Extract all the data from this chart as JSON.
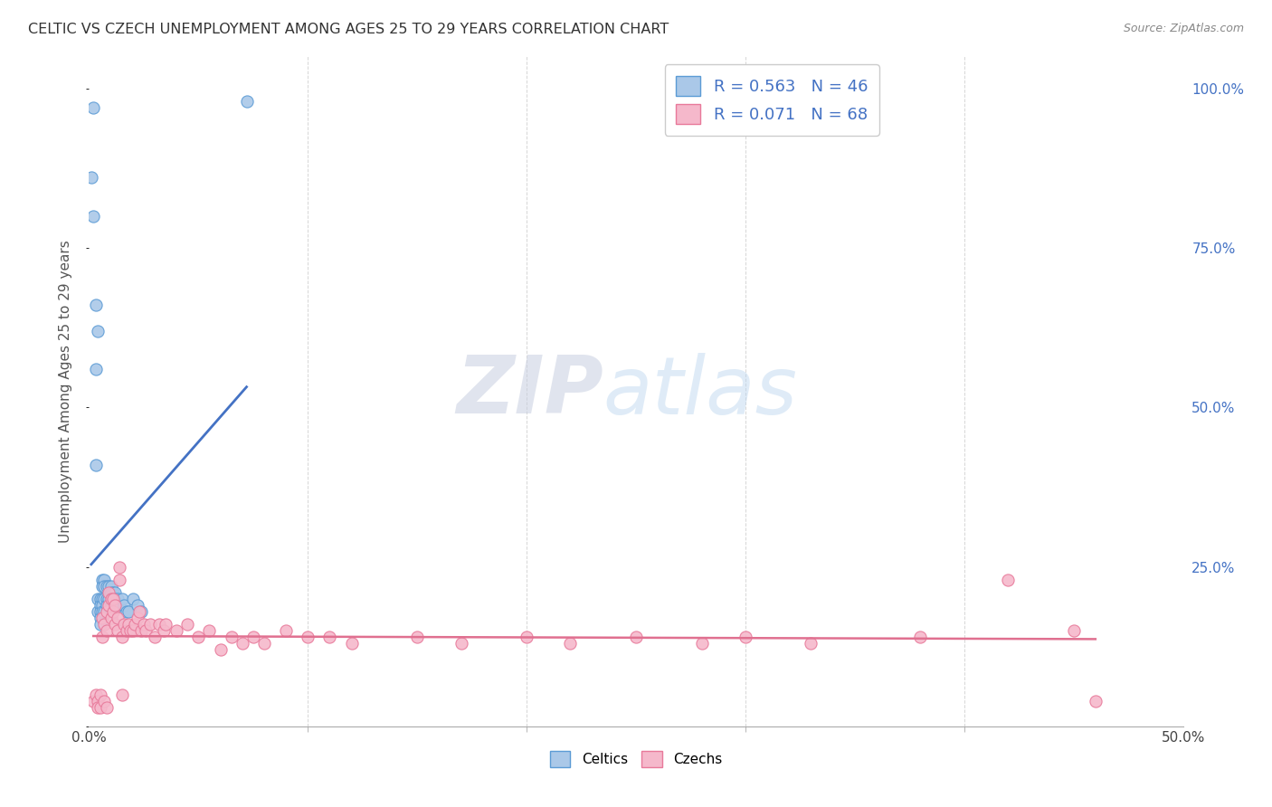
{
  "title": "CELTIC VS CZECH UNEMPLOYMENT AMONG AGES 25 TO 29 YEARS CORRELATION CHART",
  "source": "Source: ZipAtlas.com",
  "ylabel": "Unemployment Among Ages 25 to 29 years",
  "right_yticks": [
    "100.0%",
    "75.0%",
    "50.0%",
    "25.0%"
  ],
  "right_ytick_vals": [
    1.0,
    0.75,
    0.5,
    0.25
  ],
  "celtics_R": 0.563,
  "celtics_N": 46,
  "czechs_R": 0.071,
  "czechs_N": 68,
  "celtics_color": "#aac8e8",
  "czechs_color": "#f5b8cb",
  "celtics_edge_color": "#5b9bd5",
  "czechs_edge_color": "#e8799a",
  "celtics_line_color": "#4472c4",
  "czechs_line_color": "#e07090",
  "legend_celtics_label": "Celtics",
  "legend_czechs_label": "Czechs",
  "xlim": [
    0.0,
    0.5
  ],
  "ylim": [
    0.0,
    1.05
  ],
  "celtics_x": [
    0.001,
    0.002,
    0.002,
    0.003,
    0.003,
    0.003,
    0.004,
    0.004,
    0.004,
    0.005,
    0.005,
    0.005,
    0.005,
    0.005,
    0.006,
    0.006,
    0.006,
    0.006,
    0.006,
    0.007,
    0.007,
    0.007,
    0.007,
    0.008,
    0.008,
    0.008,
    0.009,
    0.009,
    0.01,
    0.01,
    0.01,
    0.01,
    0.011,
    0.012,
    0.012,
    0.013,
    0.013,
    0.014,
    0.015,
    0.016,
    0.017,
    0.018,
    0.02,
    0.022,
    0.024,
    0.072
  ],
  "celtics_y": [
    0.86,
    0.97,
    0.8,
    0.66,
    0.56,
    0.41,
    0.62,
    0.2,
    0.18,
    0.2,
    0.19,
    0.18,
    0.17,
    0.16,
    0.23,
    0.22,
    0.2,
    0.19,
    0.18,
    0.23,
    0.22,
    0.2,
    0.18,
    0.22,
    0.2,
    0.19,
    0.22,
    0.2,
    0.22,
    0.21,
    0.19,
    0.18,
    0.21,
    0.21,
    0.2,
    0.2,
    0.19,
    0.19,
    0.2,
    0.19,
    0.18,
    0.18,
    0.2,
    0.19,
    0.18,
    0.98
  ],
  "czechs_x": [
    0.002,
    0.003,
    0.004,
    0.004,
    0.005,
    0.005,
    0.006,
    0.006,
    0.007,
    0.007,
    0.008,
    0.008,
    0.008,
    0.009,
    0.009,
    0.01,
    0.01,
    0.011,
    0.011,
    0.012,
    0.012,
    0.013,
    0.013,
    0.014,
    0.014,
    0.015,
    0.015,
    0.016,
    0.017,
    0.018,
    0.019,
    0.02,
    0.021,
    0.022,
    0.023,
    0.024,
    0.025,
    0.026,
    0.028,
    0.03,
    0.032,
    0.034,
    0.035,
    0.04,
    0.045,
    0.05,
    0.055,
    0.06,
    0.065,
    0.07,
    0.075,
    0.08,
    0.09,
    0.1,
    0.11,
    0.12,
    0.15,
    0.17,
    0.2,
    0.22,
    0.25,
    0.28,
    0.3,
    0.33,
    0.38,
    0.42,
    0.45,
    0.46
  ],
  "czechs_y": [
    0.04,
    0.05,
    0.04,
    0.03,
    0.05,
    0.03,
    0.17,
    0.14,
    0.16,
    0.04,
    0.18,
    0.15,
    0.03,
    0.21,
    0.19,
    0.2,
    0.17,
    0.2,
    0.18,
    0.19,
    0.16,
    0.17,
    0.15,
    0.25,
    0.23,
    0.14,
    0.05,
    0.16,
    0.15,
    0.16,
    0.15,
    0.15,
    0.16,
    0.17,
    0.18,
    0.15,
    0.16,
    0.15,
    0.16,
    0.14,
    0.16,
    0.15,
    0.16,
    0.15,
    0.16,
    0.14,
    0.15,
    0.12,
    0.14,
    0.13,
    0.14,
    0.13,
    0.15,
    0.14,
    0.14,
    0.13,
    0.14,
    0.13,
    0.14,
    0.13,
    0.14,
    0.13,
    0.14,
    0.13,
    0.14,
    0.23,
    0.15,
    0.04
  ],
  "watermark_zip_color": "#d0d8e8",
  "watermark_atlas_color": "#c8ddf0",
  "grid_color": "#cccccc",
  "title_color": "#333333",
  "source_color": "#888888"
}
